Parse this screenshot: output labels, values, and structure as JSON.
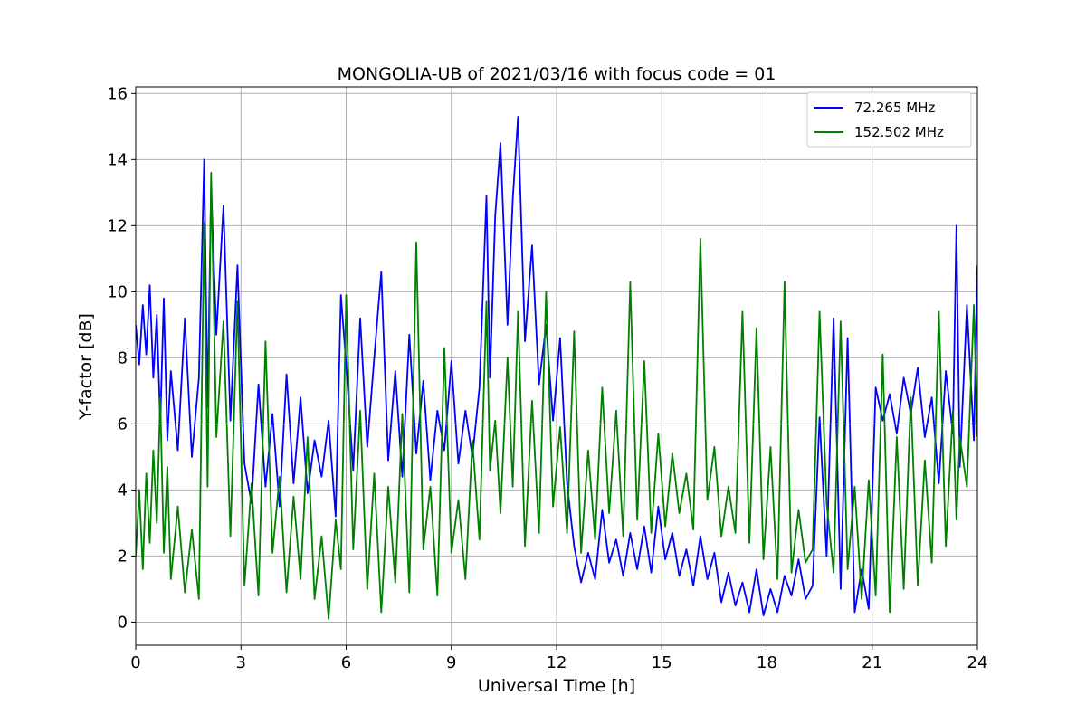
{
  "chart_data": {
    "type": "line",
    "title": "MONGOLIA-UB of 2021/03/16 with focus code = 01",
    "xlabel": "Universal Time [h]",
    "ylabel": "Y-factor [dB]",
    "xlim": [
      0,
      24
    ],
    "ylim": [
      -0.7,
      16.2
    ],
    "xticks": [
      0,
      3,
      6,
      9,
      12,
      15,
      18,
      21,
      24
    ],
    "yticks": [
      0,
      2,
      4,
      6,
      8,
      10,
      12,
      14,
      16
    ],
    "grid": true,
    "legend_position": "top-right",
    "series": [
      {
        "name": "72.265 MHz",
        "color": "#0000ff",
        "x": [
          0,
          0.1,
          0.2,
          0.3,
          0.4,
          0.5,
          0.6,
          0.7,
          0.8,
          0.9,
          1.0,
          1.2,
          1.4,
          1.6,
          1.8,
          1.95,
          2.05,
          2.15,
          2.3,
          2.5,
          2.7,
          2.9,
          3.1,
          3.3,
          3.5,
          3.7,
          3.9,
          4.1,
          4.3,
          4.5,
          4.7,
          4.9,
          5.1,
          5.3,
          5.5,
          5.7,
          5.85,
          6.0,
          6.2,
          6.4,
          6.6,
          6.8,
          7.0,
          7.2,
          7.4,
          7.6,
          7.8,
          8.0,
          8.2,
          8.4,
          8.6,
          8.8,
          9.0,
          9.2,
          9.4,
          9.6,
          9.8,
          10.0,
          10.1,
          10.25,
          10.4,
          10.6,
          10.75,
          10.9,
          11.1,
          11.3,
          11.5,
          11.7,
          11.9,
          12.1,
          12.3,
          12.5,
          12.7,
          12.9,
          13.1,
          13.3,
          13.5,
          13.7,
          13.9,
          14.1,
          14.3,
          14.5,
          14.7,
          14.9,
          15.1,
          15.3,
          15.5,
          15.7,
          15.9,
          16.1,
          16.3,
          16.5,
          16.7,
          16.9,
          17.1,
          17.3,
          17.5,
          17.7,
          17.9,
          18.1,
          18.3,
          18.5,
          18.7,
          18.9,
          19.1,
          19.3,
          19.5,
          19.7,
          19.9,
          20.1,
          20.3,
          20.5,
          20.7,
          20.9,
          21.1,
          21.3,
          21.5,
          21.7,
          21.9,
          22.1,
          22.3,
          22.5,
          22.7,
          22.9,
          23.1,
          23.3,
          23.4,
          23.5,
          23.7,
          23.9,
          24.0
        ],
        "y": [
          9.0,
          7.8,
          9.6,
          8.1,
          10.2,
          7.4,
          9.3,
          6.0,
          9.8,
          5.5,
          7.6,
          5.2,
          9.2,
          5.0,
          7.4,
          14.0,
          6.5,
          13.2,
          8.7,
          12.6,
          6.1,
          10.8,
          4.8,
          3.6,
          7.2,
          4.1,
          6.3,
          3.5,
          7.5,
          4.2,
          6.8,
          3.9,
          5.5,
          4.4,
          6.1,
          3.2,
          9.9,
          7.8,
          4.6,
          9.2,
          5.3,
          8.0,
          10.6,
          4.9,
          7.6,
          4.4,
          8.7,
          5.1,
          7.3,
          4.3,
          6.4,
          5.2,
          7.9,
          4.8,
          6.4,
          5.0,
          7.1,
          12.9,
          7.4,
          12.3,
          14.5,
          9.0,
          12.8,
          15.3,
          8.5,
          11.4,
          7.2,
          9.0,
          6.1,
          8.6,
          4.2,
          2.3,
          1.2,
          2.1,
          1.3,
          3.4,
          1.8,
          2.5,
          1.4,
          2.7,
          1.6,
          2.9,
          1.5,
          3.5,
          1.9,
          2.7,
          1.4,
          2.2,
          1.1,
          2.6,
          1.3,
          2.1,
          0.6,
          1.5,
          0.5,
          1.2,
          0.3,
          1.6,
          0.2,
          1.0,
          0.3,
          1.4,
          0.8,
          1.9,
          0.7,
          1.1,
          6.2,
          2.0,
          9.2,
          1.0,
          8.6,
          0.3,
          1.6,
          0.4,
          7.1,
          6.1,
          6.9,
          5.7,
          7.4,
          6.3,
          7.7,
          5.6,
          6.8,
          4.2,
          7.6,
          5.7,
          12.0,
          4.7,
          9.6,
          5.5,
          10.8
        ]
      },
      {
        "name": "152.502 MHz",
        "color": "#008000",
        "x": [
          0,
          0.1,
          0.2,
          0.3,
          0.4,
          0.5,
          0.6,
          0.7,
          0.8,
          0.9,
          1.0,
          1.2,
          1.4,
          1.6,
          1.8,
          1.95,
          2.05,
          2.15,
          2.3,
          2.5,
          2.7,
          2.9,
          3.1,
          3.3,
          3.5,
          3.7,
          3.9,
          4.1,
          4.3,
          4.5,
          4.7,
          4.9,
          5.1,
          5.3,
          5.5,
          5.7,
          5.85,
          6.0,
          6.2,
          6.4,
          6.6,
          6.8,
          7.0,
          7.2,
          7.4,
          7.6,
          7.8,
          8.0,
          8.2,
          8.4,
          8.6,
          8.8,
          9.0,
          9.2,
          9.4,
          9.6,
          9.8,
          10.0,
          10.1,
          10.25,
          10.4,
          10.6,
          10.75,
          10.9,
          11.1,
          11.3,
          11.5,
          11.7,
          11.9,
          12.1,
          12.3,
          12.5,
          12.7,
          12.9,
          13.1,
          13.3,
          13.5,
          13.7,
          13.9,
          14.1,
          14.3,
          14.5,
          14.7,
          14.9,
          15.1,
          15.3,
          15.5,
          15.7,
          15.9,
          16.1,
          16.3,
          16.5,
          16.7,
          16.9,
          17.1,
          17.3,
          17.5,
          17.7,
          17.9,
          18.1,
          18.3,
          18.5,
          18.7,
          18.9,
          19.1,
          19.3,
          19.5,
          19.7,
          19.9,
          20.1,
          20.3,
          20.5,
          20.7,
          20.9,
          21.1,
          21.3,
          21.5,
          21.7,
          21.9,
          22.1,
          22.3,
          22.5,
          22.7,
          22.9,
          23.1,
          23.3,
          23.4,
          23.5,
          23.7,
          23.9,
          24.0
        ],
        "y": [
          2.0,
          4.0,
          1.6,
          4.5,
          2.4,
          5.2,
          3.0,
          6.8,
          2.1,
          4.7,
          1.3,
          3.5,
          0.9,
          2.8,
          0.7,
          12.1,
          4.1,
          13.6,
          5.6,
          9.1,
          2.6,
          9.7,
          1.1,
          4.2,
          0.8,
          8.5,
          2.1,
          4.4,
          0.9,
          3.8,
          1.3,
          5.6,
          0.7,
          2.6,
          0.1,
          3.1,
          1.6,
          9.9,
          2.2,
          6.4,
          1.0,
          4.5,
          0.3,
          4.1,
          1.2,
          6.3,
          0.9,
          11.5,
          2.2,
          4.1,
          0.8,
          8.3,
          2.1,
          3.7,
          1.3,
          5.5,
          2.5,
          9.7,
          4.6,
          6.1,
          3.3,
          8.0,
          4.1,
          9.4,
          2.3,
          6.7,
          2.7,
          10.0,
          3.5,
          5.9,
          2.7,
          8.8,
          2.1,
          5.2,
          2.5,
          7.1,
          3.3,
          6.4,
          2.6,
          10.3,
          3.1,
          7.9,
          2.7,
          5.7,
          2.9,
          5.1,
          3.3,
          4.5,
          2.8,
          11.6,
          3.7,
          5.3,
          2.6,
          4.1,
          2.7,
          9.4,
          2.4,
          8.9,
          1.9,
          5.3,
          1.3,
          10.3,
          1.5,
          3.4,
          1.8,
          2.2,
          9.4,
          3.6,
          1.5,
          9.1,
          1.6,
          4.1,
          0.7,
          4.3,
          0.8,
          8.1,
          0.3,
          5.6,
          1.0,
          6.8,
          1.1,
          4.9,
          1.8,
          9.4,
          2.3,
          6.4,
          3.1,
          5.6,
          4.1,
          9.6,
          5.6
        ]
      }
    ]
  }
}
